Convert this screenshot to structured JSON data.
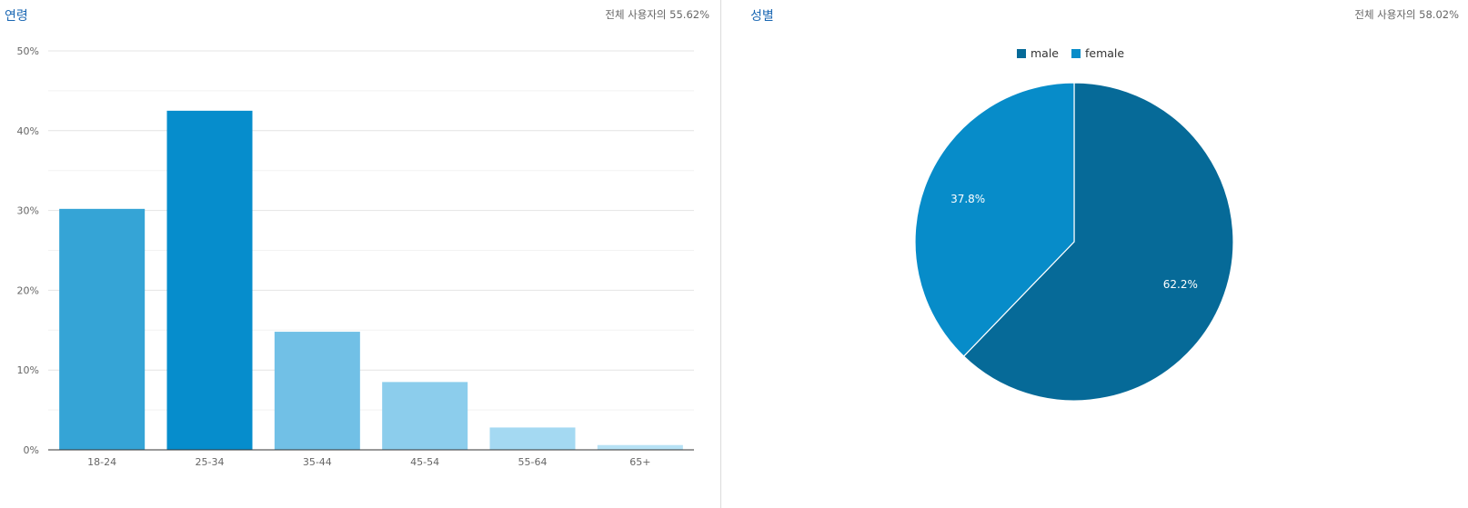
{
  "age_panel": {
    "title": "연령",
    "subtitle": "전체 사용자의 55.62%"
  },
  "gender_panel": {
    "title": "성별",
    "subtitle": "전체 사용자의 58.02%"
  },
  "chart_data": [
    {
      "type": "bar",
      "categories": [
        "18-24",
        "25-34",
        "35-44",
        "45-54",
        "55-64",
        "65+"
      ],
      "values": [
        30.2,
        42.5,
        14.8,
        8.5,
        2.8,
        0.6
      ],
      "yticks": [
        "0%",
        "10%",
        "20%",
        "30%",
        "40%",
        "50%"
      ],
      "ylim": [
        0,
        50
      ],
      "bar_colors": [
        "#35a4d6",
        "#068dcc",
        "#71c0e6",
        "#8ccdec",
        "#a4d9f2",
        "#b7e2f5"
      ],
      "grid": true
    },
    {
      "type": "pie",
      "labels": [
        "male",
        "female"
      ],
      "values": [
        62.2,
        37.8
      ],
      "value_labels": [
        "62.2%",
        "37.8%"
      ],
      "colors": [
        "#066a98",
        "#078cc9"
      ],
      "legend_position": "top"
    }
  ]
}
